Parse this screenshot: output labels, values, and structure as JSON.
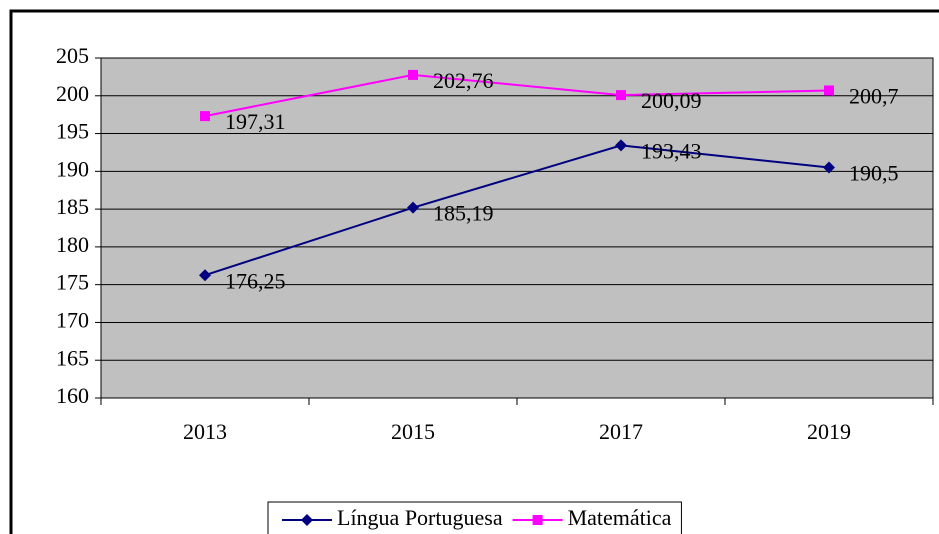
{
  "chart_data": {
    "type": "line",
    "categories": [
      "2013",
      "2015",
      "2017",
      "2019"
    ],
    "series": [
      {
        "name": "Língua Portuguesa",
        "color": "#000080",
        "marker": "diamond",
        "values": [
          176.25,
          185.19,
          193.43,
          190.5
        ],
        "value_labels": [
          "176,25",
          "185,19",
          "193,43",
          "190,5"
        ]
      },
      {
        "name": "Matemática",
        "color": "#ff00ff",
        "marker": "square",
        "values": [
          197.31,
          202.76,
          200.09,
          200.7
        ],
        "value_labels": [
          "197,31",
          "202,76",
          "200,09",
          "200,7"
        ]
      }
    ],
    "ylim": [
      160,
      205
    ],
    "yticks": [
      160,
      165,
      170,
      175,
      180,
      185,
      190,
      195,
      200,
      205
    ],
    "grid": true,
    "plot_background": "#c0c0c0",
    "legend": "bottom"
  }
}
